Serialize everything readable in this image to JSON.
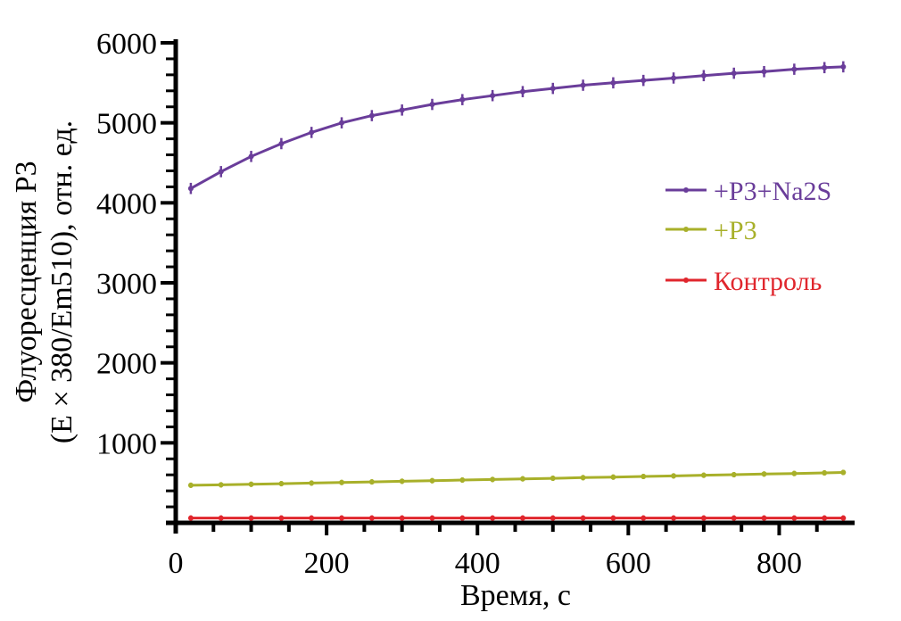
{
  "chart_data": {
    "type": "line",
    "xlabel": "Время, с",
    "ylabel_line1": "Флуоресценция Р3",
    "ylabel_line2": "(E × 380/Em510), отн. ед.",
    "xlim": [
      0,
      900
    ],
    "ylim": [
      0,
      6000
    ],
    "xticks": [
      0,
      200,
      400,
      600,
      800
    ],
    "yticks": [
      1000,
      2000,
      3000,
      4000,
      5000,
      6000
    ],
    "x_tick_labels": [
      "0",
      "200",
      "400",
      "600",
      "800"
    ],
    "y_tick_labels": [
      "1000",
      "2000",
      "3000",
      "4000",
      "5000",
      "6000"
    ],
    "grid": false,
    "legend_position": "right",
    "x": [
      20,
      60,
      100,
      140,
      180,
      220,
      260,
      300,
      340,
      380,
      420,
      460,
      500,
      540,
      580,
      620,
      660,
      700,
      740,
      780,
      820,
      860,
      885
    ],
    "series": [
      {
        "name": "+P3+Na2S",
        "color": "#6a3d9a",
        "values": [
          4180,
          4390,
          4580,
          4740,
          4880,
          5000,
          5090,
          5160,
          5230,
          5290,
          5340,
          5390,
          5430,
          5470,
          5500,
          5530,
          5560,
          5590,
          5620,
          5640,
          5670,
          5690,
          5700
        ],
        "error": 70
      },
      {
        "name": "+P3",
        "color": "#a8b02a",
        "values": [
          470,
          475,
          482,
          490,
          497,
          505,
          512,
          520,
          527,
          535,
          542,
          550,
          557,
          565,
          572,
          580,
          587,
          595,
          602,
          610,
          617,
          625,
          630
        ],
        "error": 10
      },
      {
        "name": "Контроль",
        "color": "#e0262d",
        "values": [
          60,
          60,
          60,
          60,
          60,
          60,
          60,
          60,
          60,
          60,
          60,
          60,
          60,
          60,
          60,
          60,
          60,
          60,
          60,
          60,
          60,
          60,
          60
        ],
        "error": 5
      }
    ]
  }
}
